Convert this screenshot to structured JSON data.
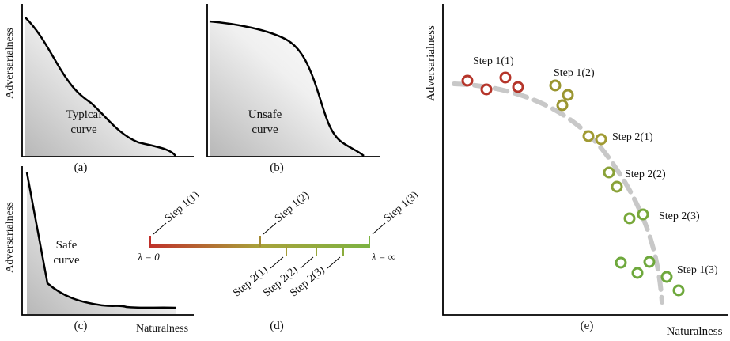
{
  "panels": {
    "a": {
      "ylabel": "Adversarialness",
      "curve_label": [
        "Typical",
        "curve"
      ],
      "caption": "(a)"
    },
    "b": {
      "curve_label": [
        "Unsafe",
        "curve"
      ],
      "caption": "(b)"
    },
    "c": {
      "ylabel": "Adversarialness",
      "curve_label": [
        "Safe",
        "curve"
      ],
      "caption": "(c)",
      "xlabel": "Naturalness"
    },
    "d": {
      "caption": "(d)",
      "lambda_start": "λ = 0",
      "lambda_end": "λ = ∞",
      "above_labels": [
        "Step 1(1)",
        "Step 1(2)",
        "Step 1(3)"
      ],
      "below_labels": [
        "Step 2(1)",
        "Step 2(2)",
        "Step 2(3)"
      ],
      "colors": {
        "start": "#c0302a",
        "mid": "#a8a23a",
        "end": "#7cb342"
      }
    },
    "e": {
      "ylabel": "Adversarialness",
      "xlabel": "Naturalness",
      "caption": "(e)",
      "step_labels": [
        "Step 1(1)",
        "Step 1(2)",
        "Step 2(1)",
        "Step 2(2)",
        "Step 2(3)",
        "Step 1(3)"
      ],
      "colors": {
        "red": "#b5352a",
        "olive": "#9a9530",
        "green": "#6ea83c",
        "dashed": "#c8c8c8"
      }
    }
  }
}
